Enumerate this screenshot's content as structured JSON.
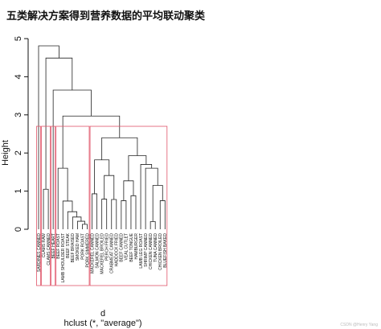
{
  "chart_data": {
    "type": "dendrogram",
    "title": "五类解决方案得到营养数据的平均联动聚类",
    "ylabel": "Height",
    "xlabel": "d",
    "subtitle": "hclust (*, \"average\")",
    "watermark": "CSDN @Henry Yang",
    "labels": [
      "SARDINES CANNED",
      "CLAMS RAW",
      "CLAMS CANNED",
      "BEEF HEART",
      "BEEF ROAST",
      "LAMB SHOULDER ROAST",
      "BEEF STEAK",
      "BEEF BRAISED",
      "SMOKED HAM",
      "PORK ROAST",
      "PORK SIMMERED",
      "MACKEREL CANNED",
      "SALMON CANNED",
      "MACKEREL BROILED",
      "PERCH FRIED",
      "CRABMEAT CANNED",
      "HADDOCK FRIED",
      "BEEF CANNED",
      "VEAL CUTLET",
      "BEEF TONGUE",
      "HAMBURGER",
      "LAMB LEG ROAST",
      "SHRIMP CANNED",
      "CHICKEN CANNED",
      "TUNA CANNED",
      "CHICKEN BROILED",
      "BLUEFISH BAKED"
    ],
    "merges": [
      {
        "a": -10,
        "b": -11,
        "height": 0.13
      },
      {
        "a": -9,
        "b": 1,
        "height": 0.21
      },
      {
        "a": -8,
        "b": 2,
        "height": 0.32
      },
      {
        "a": -7,
        "b": 3,
        "height": 0.46
      },
      {
        "a": -6,
        "b": 4,
        "height": 0.74
      },
      {
        "a": -5,
        "b": 5,
        "height": 1.6
      },
      {
        "a": -24,
        "b": -25,
        "height": 0.2
      },
      {
        "a": -26,
        "b": -27,
        "height": 0.75
      },
      {
        "a": 7,
        "b": 8,
        "height": 1.15
      },
      {
        "a": -23,
        "b": 9,
        "height": 1.6
      },
      {
        "a": -22,
        "b": 10,
        "height": 1.7
      },
      {
        "a": -18,
        "b": -19,
        "height": 0.75
      },
      {
        "a": -20,
        "b": -21,
        "height": 0.88
      },
      {
        "a": 12,
        "b": 13,
        "height": 1.27
      },
      {
        "a": 14,
        "b": 11,
        "height": 1.93
      },
      {
        "a": -12,
        "b": -13,
        "height": 0.93
      },
      {
        "a": -14,
        "b": -15,
        "height": 0.79
      },
      {
        "a": -16,
        "b": -17,
        "height": 0.78
      },
      {
        "a": 17,
        "b": 18,
        "height": 1.41
      },
      {
        "a": 16,
        "b": 19,
        "height": 1.82
      },
      {
        "a": 20,
        "b": 15,
        "height": 2.4
      },
      {
        "a": 6,
        "b": 21,
        "height": 2.97
      },
      {
        "a": -4,
        "b": 22,
        "height": 3.65
      },
      {
        "a": -2,
        "b": -3,
        "height": 1.05
      },
      {
        "a": 24,
        "b": 23,
        "height": 4.49
      },
      {
        "a": -1,
        "b": 25,
        "height": 4.81
      }
    ],
    "rect_groups": [
      1,
      2,
      1,
      7,
      16
    ],
    "rect_height": 2.7,
    "rect_color": "#e0556a",
    "color": "#222222",
    "ylim": [
      0,
      5
    ],
    "yticks": [
      0,
      1,
      2,
      3,
      4,
      5
    ]
  }
}
